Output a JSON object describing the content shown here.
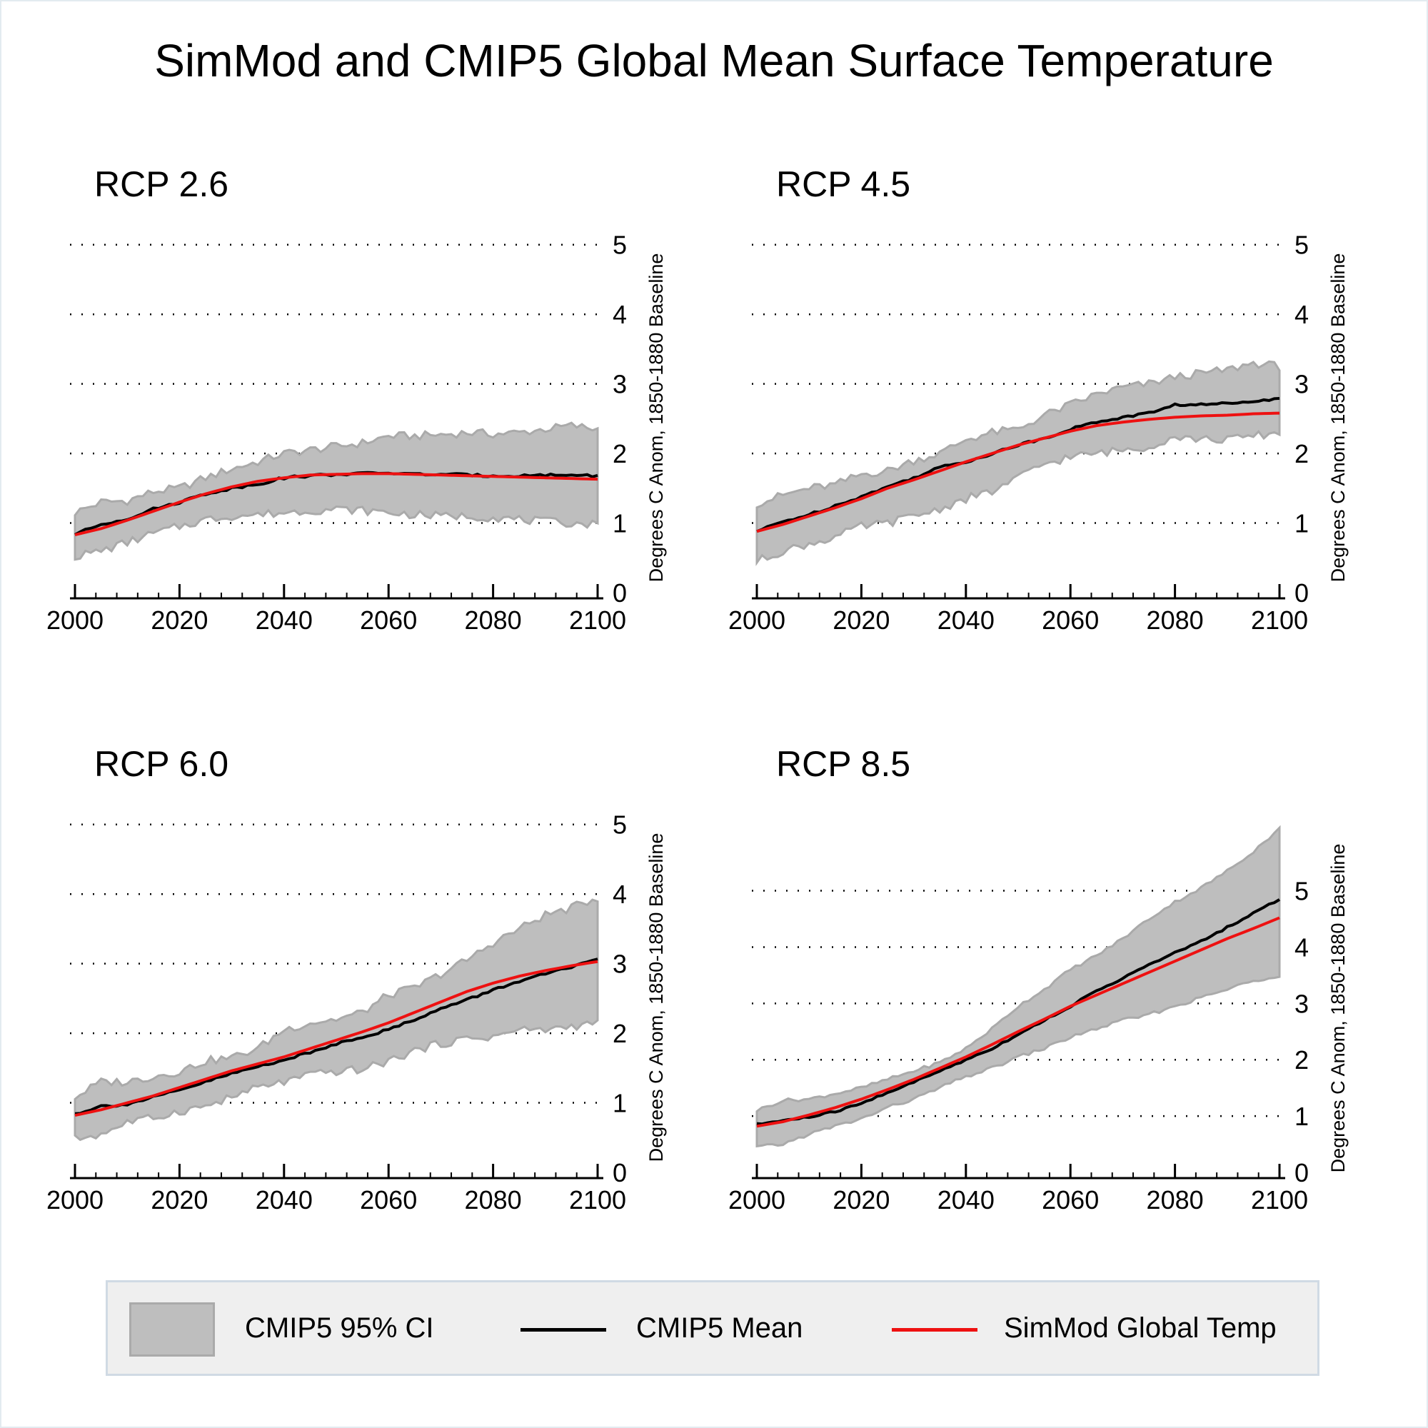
{
  "title": "SimMod and CMIP5 Global Mean Surface Temperature",
  "colors": {
    "ci_fill": "#bebebe",
    "ci_edge": "#aaaaaa",
    "mean": "#000000",
    "simmod": "#ee1111",
    "legend_bg": "#efefef"
  },
  "legend": {
    "position": "bottom",
    "items": [
      {
        "label": "CMIP5 95% CI",
        "kind": "area"
      },
      {
        "label": "CMIP5 Mean",
        "kind": "line-black"
      },
      {
        "label": "SimMod Global Temp",
        "kind": "line-red"
      }
    ]
  },
  "chart_data": [
    {
      "type": "line",
      "title": "RCP 2.6",
      "xlabel": "",
      "ylabel": "Degrees C Anom, 1850-1880 Baseline",
      "xlim": [
        2000,
        2100
      ],
      "ylim": [
        0,
        5.1
      ],
      "xticks": [
        2000,
        2020,
        2040,
        2060,
        2080,
        2100
      ],
      "yticks": [
        0,
        1,
        2,
        3,
        4,
        5
      ],
      "grid": "horizontal-dotted",
      "x": [
        2000,
        2005,
        2010,
        2015,
        2020,
        2025,
        2030,
        2035,
        2040,
        2045,
        2050,
        2055,
        2060,
        2065,
        2070,
        2075,
        2080,
        2085,
        2090,
        2095,
        2100
      ],
      "series": [
        {
          "name": "CMIP5 95% CI upper",
          "values": [
            1.15,
            1.3,
            1.32,
            1.45,
            1.5,
            1.65,
            1.78,
            1.88,
            2.0,
            2.05,
            2.1,
            2.15,
            2.25,
            2.25,
            2.27,
            2.3,
            2.28,
            2.3,
            2.35,
            2.4,
            2.35
          ]
        },
        {
          "name": "CMIP5 95% CI lower",
          "values": [
            0.52,
            0.6,
            0.72,
            0.85,
            0.95,
            1.05,
            1.1,
            1.12,
            1.15,
            1.18,
            1.2,
            1.18,
            1.15,
            1.12,
            1.1,
            1.1,
            1.08,
            1.05,
            1.02,
            1.0,
            0.98
          ]
        },
        {
          "name": "CMIP5 Mean",
          "values": [
            0.84,
            0.98,
            1.06,
            1.2,
            1.3,
            1.42,
            1.5,
            1.56,
            1.65,
            1.68,
            1.7,
            1.71,
            1.72,
            1.7,
            1.7,
            1.69,
            1.68,
            1.68,
            1.69,
            1.69,
            1.68
          ]
        },
        {
          "name": "SimMod Global Temp",
          "values": [
            0.83,
            0.92,
            1.04,
            1.17,
            1.3,
            1.42,
            1.52,
            1.6,
            1.65,
            1.69,
            1.7,
            1.71,
            1.71,
            1.7,
            1.69,
            1.68,
            1.67,
            1.66,
            1.65,
            1.64,
            1.63
          ]
        }
      ]
    },
    {
      "type": "line",
      "title": "RCP 4.5",
      "xlabel": "",
      "ylabel": "Degrees C Anom, 1850-1880 Baseline",
      "xlim": [
        2000,
        2100
      ],
      "ylim": [
        0,
        5.1
      ],
      "xticks": [
        2000,
        2020,
        2040,
        2060,
        2080,
        2100
      ],
      "yticks": [
        0,
        1,
        2,
        3,
        4,
        5
      ],
      "grid": "horizontal-dotted",
      "x": [
        2000,
        2005,
        2010,
        2015,
        2020,
        2025,
        2030,
        2035,
        2040,
        2045,
        2050,
        2055,
        2060,
        2065,
        2070,
        2075,
        2080,
        2085,
        2090,
        2095,
        2100
      ],
      "series": [
        {
          "name": "CMIP5 95% CI upper",
          "values": [
            1.28,
            1.4,
            1.5,
            1.55,
            1.7,
            1.75,
            1.9,
            2.0,
            2.2,
            2.3,
            2.35,
            2.55,
            2.7,
            2.85,
            2.95,
            3.0,
            3.1,
            3.15,
            3.2,
            3.3,
            3.25
          ]
        },
        {
          "name": "CMIP5 95% CI lower",
          "values": [
            0.45,
            0.6,
            0.7,
            0.8,
            0.95,
            1.0,
            1.1,
            1.2,
            1.35,
            1.45,
            1.65,
            1.85,
            1.95,
            2.0,
            2.05,
            2.1,
            2.25,
            2.2,
            2.2,
            2.25,
            2.3
          ]
        },
        {
          "name": "CMIP5 Mean",
          "values": [
            0.88,
            1.02,
            1.12,
            1.25,
            1.38,
            1.52,
            1.65,
            1.8,
            1.88,
            2.0,
            2.12,
            2.22,
            2.35,
            2.45,
            2.52,
            2.58,
            2.7,
            2.7,
            2.72,
            2.76,
            2.78
          ]
        },
        {
          "name": "SimMod Global Temp",
          "values": [
            0.88,
            0.98,
            1.1,
            1.22,
            1.35,
            1.5,
            1.62,
            1.75,
            1.88,
            2.0,
            2.12,
            2.22,
            2.32,
            2.4,
            2.45,
            2.49,
            2.52,
            2.54,
            2.55,
            2.57,
            2.58
          ]
        }
      ]
    },
    {
      "type": "line",
      "title": "RCP 6.0",
      "xlabel": "",
      "ylabel": "Degrees C Anom, 1850-1880 Baseline",
      "xlim": [
        2000,
        2100
      ],
      "ylim": [
        0,
        5.1
      ],
      "xticks": [
        2000,
        2020,
        2040,
        2060,
        2080,
        2100
      ],
      "yticks": [
        0,
        1,
        2,
        3,
        4,
        5
      ],
      "grid": "horizontal-dotted",
      "x": [
        2000,
        2005,
        2010,
        2015,
        2020,
        2025,
        2030,
        2035,
        2040,
        2045,
        2050,
        2055,
        2060,
        2065,
        2070,
        2075,
        2080,
        2085,
        2090,
        2095,
        2100
      ],
      "series": [
        {
          "name": "CMIP5 95% CI upper",
          "values": [
            1.08,
            1.3,
            1.3,
            1.38,
            1.45,
            1.6,
            1.65,
            1.78,
            2.05,
            2.15,
            2.2,
            2.3,
            2.55,
            2.65,
            2.85,
            3.05,
            3.3,
            3.5,
            3.7,
            3.8,
            3.95
          ]
        },
        {
          "name": "CMIP5 95% CI lower",
          "values": [
            0.48,
            0.55,
            0.72,
            0.78,
            0.88,
            0.95,
            1.08,
            1.22,
            1.3,
            1.4,
            1.45,
            1.48,
            1.6,
            1.75,
            1.85,
            1.92,
            1.95,
            2.05,
            2.05,
            2.1,
            2.15
          ]
        },
        {
          "name": "CMIP5 Mean",
          "values": [
            0.84,
            0.95,
            0.98,
            1.08,
            1.18,
            1.3,
            1.42,
            1.52,
            1.62,
            1.72,
            1.85,
            1.95,
            2.05,
            2.2,
            2.35,
            2.48,
            2.62,
            2.75,
            2.85,
            2.95,
            3.05
          ]
        },
        {
          "name": "SimMod Global Temp",
          "values": [
            0.82,
            0.9,
            1.0,
            1.1,
            1.22,
            1.34,
            1.46,
            1.56,
            1.66,
            1.78,
            1.9,
            2.02,
            2.15,
            2.3,
            2.45,
            2.6,
            2.72,
            2.82,
            2.9,
            2.97,
            3.03
          ]
        }
      ]
    },
    {
      "type": "line",
      "title": "RCP 8.5",
      "xlabel": "",
      "ylabel": "Degrees C Anom, 1850-1880 Baseline",
      "xlim": [
        2000,
        2100
      ],
      "ylim": [
        0,
        6.3
      ],
      "xticks": [
        2000,
        2020,
        2040,
        2060,
        2080,
        2100
      ],
      "yticks": [
        0,
        1,
        2,
        3,
        4,
        5
      ],
      "grid": "horizontal-dotted",
      "x": [
        2000,
        2005,
        2010,
        2015,
        2020,
        2025,
        2030,
        2035,
        2040,
        2045,
        2050,
        2055,
        2060,
        2065,
        2070,
        2075,
        2080,
        2085,
        2090,
        2095,
        2100
      ],
      "series": [
        {
          "name": "CMIP5 95% CI upper",
          "values": [
            1.1,
            1.28,
            1.3,
            1.4,
            1.5,
            1.65,
            1.8,
            1.95,
            2.2,
            2.55,
            2.95,
            3.25,
            3.6,
            3.85,
            4.15,
            4.5,
            4.8,
            5.05,
            5.35,
            5.7,
            6.1
          ]
        },
        {
          "name": "CMIP5 95% CI lower",
          "values": [
            0.45,
            0.5,
            0.68,
            0.82,
            0.95,
            1.15,
            1.3,
            1.5,
            1.7,
            1.85,
            2.05,
            2.2,
            2.4,
            2.55,
            2.7,
            2.8,
            2.95,
            3.1,
            3.25,
            3.4,
            3.5
          ]
        },
        {
          "name": "CMIP5 Mean",
          "values": [
            0.85,
            0.92,
            0.98,
            1.08,
            1.22,
            1.42,
            1.6,
            1.8,
            2.0,
            2.2,
            2.45,
            2.7,
            2.95,
            3.22,
            3.45,
            3.68,
            3.9,
            4.1,
            4.35,
            4.6,
            4.85
          ]
        },
        {
          "name": "SimMod Global Temp",
          "values": [
            0.82,
            0.9,
            1.02,
            1.15,
            1.3,
            1.47,
            1.65,
            1.85,
            2.05,
            2.27,
            2.5,
            2.72,
            2.95,
            3.15,
            3.35,
            3.55,
            3.75,
            3.95,
            4.15,
            4.33,
            4.52
          ]
        }
      ]
    }
  ]
}
